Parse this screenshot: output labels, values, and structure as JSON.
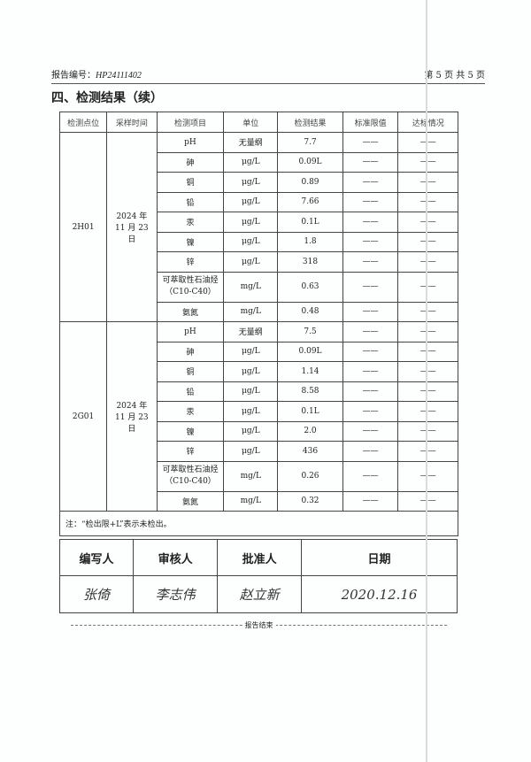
{
  "header": {
    "report_no_label": "报告编号：",
    "report_no": "HP24111402",
    "page": "第 5 页 共 5 页"
  },
  "section_title": "四、检测结果（续）",
  "table": {
    "headers": [
      "检测点位",
      "采样时间",
      "检测项目",
      "单位",
      "检测结果",
      "标准限值",
      "达标情况"
    ],
    "groups": [
      {
        "site": "2H01",
        "time": "2024 年 11 月 23 日",
        "rows": [
          [
            "pH",
            "无量纲",
            "7.7",
            "——",
            "——"
          ],
          [
            "砷",
            "μg/L",
            "0.09L",
            "——",
            "——"
          ],
          [
            "铜",
            "μg/L",
            "0.89",
            "——",
            "——"
          ],
          [
            "铅",
            "μg/L",
            "7.66",
            "——",
            "——"
          ],
          [
            "汞",
            "μg/L",
            "0.1L",
            "——",
            "——"
          ],
          [
            "镍",
            "μg/L",
            "1.8",
            "——",
            "——"
          ],
          [
            "锌",
            "μg/L",
            "318",
            "——",
            "——"
          ],
          [
            "可萃取性石油烃（C10-C40）",
            "mg/L",
            "0.63",
            "——",
            "——"
          ],
          [
            "氨氮",
            "mg/L",
            "0.48",
            "——",
            "——"
          ]
        ]
      },
      {
        "site": "2G01",
        "time": "2024 年 11 月 23 日",
        "rows": [
          [
            "pH",
            "无量纲",
            "7.5",
            "——",
            "——"
          ],
          [
            "砷",
            "μg/L",
            "0.09L",
            "——",
            "——"
          ],
          [
            "铜",
            "μg/L",
            "1.14",
            "——",
            "——"
          ],
          [
            "铅",
            "μg/L",
            "8.58",
            "——",
            "——"
          ],
          [
            "汞",
            "μg/L",
            "0.1L",
            "——",
            "——"
          ],
          [
            "镍",
            "μg/L",
            "2.0",
            "——",
            "——"
          ],
          [
            "锌",
            "μg/L",
            "436",
            "——",
            "——"
          ],
          [
            "可萃取性石油烃（C10-C40）",
            "mg/L",
            "0.26",
            "——",
            "——"
          ],
          [
            "氨氮",
            "mg/L",
            "0.32",
            "——",
            "——"
          ]
        ]
      }
    ],
    "note": "注：“检出限+L”表示未检出。"
  },
  "signatures": {
    "headers": [
      "编写人",
      "审核人",
      "批准人",
      "日期"
    ],
    "values": [
      "张倚",
      "李志伟",
      "赵立新",
      "2020.12.16"
    ]
  },
  "end_text": "报告结束"
}
